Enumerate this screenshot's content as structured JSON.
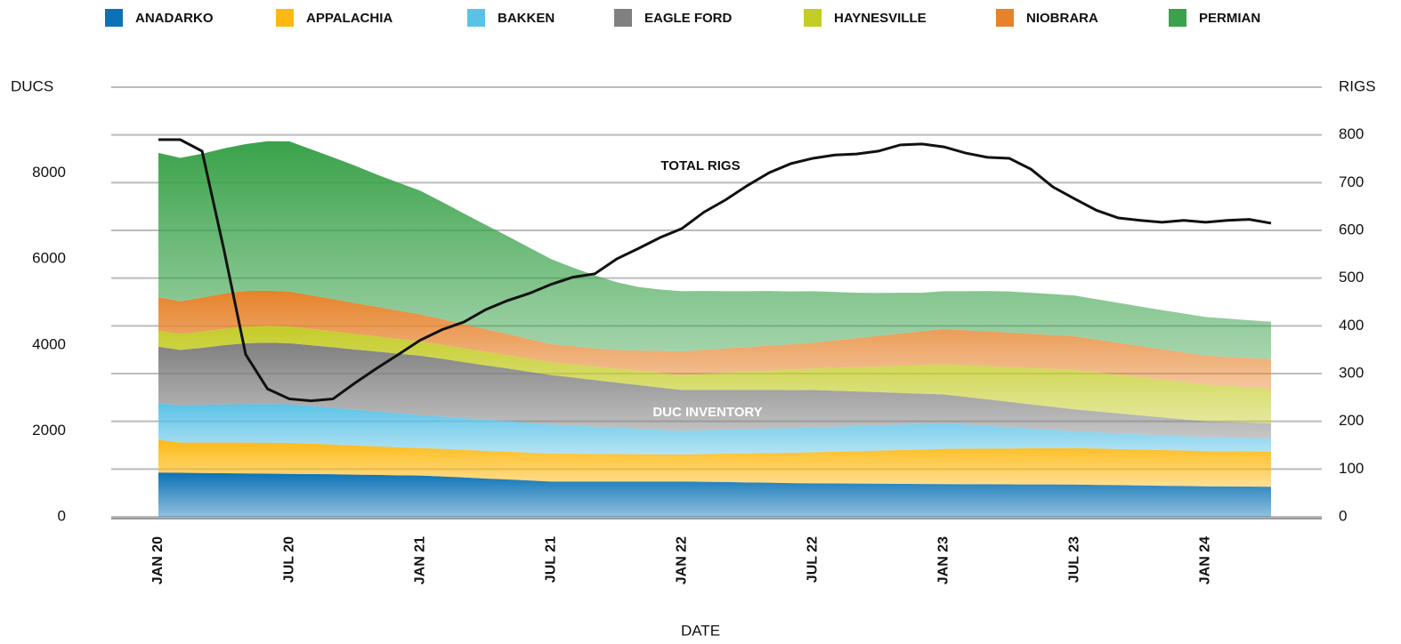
{
  "chart_data": {
    "type": "stacked-area-line",
    "ylabel": "DUCS",
    "y2label": "RIGS",
    "xlabel": "DATE",
    "annotations": [
      "TOTAL RIGS",
      "DUC INVENTORY"
    ],
    "categories": [
      "JAN 20",
      null,
      null,
      null,
      null,
      null,
      "JUL 20",
      null,
      null,
      null,
      null,
      null,
      "JAN 21",
      null,
      null,
      null,
      null,
      null,
      "JUL 21",
      null,
      null,
      null,
      null,
      null,
      "JAN 22",
      null,
      null,
      null,
      null,
      null,
      "JUL 22",
      null,
      null,
      null,
      null,
      null,
      "JAN 23",
      null,
      null,
      null,
      null,
      null,
      "JUL 23",
      null,
      null,
      null,
      null,
      null,
      "JAN 24",
      null,
      null,
      null
    ],
    "ylim": [
      0,
      10000
    ],
    "yticks": [
      0,
      2000,
      4000,
      6000,
      8000
    ],
    "y2lim": [
      0,
      900
    ],
    "y2ticks": [
      0,
      100,
      200,
      300,
      400,
      500,
      600,
      700,
      800
    ],
    "grid": true,
    "legend": "top",
    "series": [
      {
        "name": "ANADARKO",
        "color": "#0b72b5",
        "values": [
          1030,
          1025,
          1020,
          1015,
          1010,
          1005,
          1000,
          995,
          990,
          980,
          975,
          965,
          960,
          940,
          915,
          890,
          870,
          845,
          820,
          820,
          820,
          820,
          820,
          820,
          820,
          815,
          810,
          800,
          795,
          785,
          780,
          777,
          773,
          770,
          767,
          763,
          760,
          758,
          757,
          755,
          753,
          752,
          750,
          743,
          737,
          730,
          723,
          717,
          710,
          707,
          703,
          700
        ]
      },
      {
        "name": "APPALACHIA",
        "color": "#fdb913",
        "values": [
          760,
          700,
          705,
          710,
          715,
          718,
          720,
          707,
          693,
          680,
          667,
          653,
          640,
          642,
          643,
          645,
          647,
          648,
          650,
          647,
          643,
          640,
          637,
          633,
          630,
          645,
          660,
          675,
          690,
          705,
          720,
          737,
          753,
          770,
          787,
          803,
          820,
          825,
          830,
          835,
          840,
          845,
          850,
          845,
          840,
          835,
          830,
          825,
          820,
          820,
          820,
          820
        ]
      },
      {
        "name": "BAKKEN",
        "color": "#5bc2e7",
        "values": [
          850,
          870,
          880,
          890,
          895,
          900,
          900,
          878,
          857,
          835,
          813,
          792,
          770,
          755,
          740,
          725,
          710,
          695,
          680,
          658,
          637,
          615,
          593,
          572,
          550,
          555,
          560,
          565,
          570,
          575,
          580,
          583,
          587,
          590,
          593,
          597,
          600,
          565,
          530,
          495,
          460,
          425,
          390,
          378,
          367,
          355,
          343,
          332,
          320,
          317,
          313,
          310
        ]
      },
      {
        "name": "EAGLE FORD",
        "color": "#808080",
        "values": [
          1320,
          1290,
          1330,
          1380,
          1420,
          1430,
          1420,
          1413,
          1407,
          1400,
          1393,
          1387,
          1380,
          1342,
          1303,
          1265,
          1227,
          1188,
          1150,
          1117,
          1083,
          1050,
          1017,
          983,
          950,
          937,
          923,
          910,
          897,
          883,
          870,
          837,
          803,
          770,
          737,
          703,
          670,
          643,
          617,
          590,
          563,
          537,
          510,
          487,
          463,
          440,
          417,
          393,
          370,
          363,
          357,
          350
        ]
      },
      {
        "name": "HAYNESVILLE",
        "color": "#c4cc27",
        "values": [
          370,
          370,
          375,
          380,
          385,
          390,
          390,
          380,
          370,
          360,
          350,
          340,
          330,
          325,
          320,
          315,
          310,
          305,
          300,
          308,
          317,
          325,
          333,
          342,
          350,
          375,
          400,
          425,
          450,
          475,
          500,
          533,
          567,
          600,
          633,
          667,
          700,
          737,
          773,
          810,
          847,
          883,
          920,
          910,
          900,
          890,
          880,
          870,
          860,
          840,
          820,
          800
        ]
      },
      {
        "name": "NIOBRARA",
        "color": "#e6822a",
        "values": [
          780,
          760,
          790,
          820,
          830,
          820,
          810,
          780,
          750,
          720,
          690,
          660,
          630,
          595,
          560,
          525,
          490,
          455,
          420,
          420,
          420,
          430,
          470,
          510,
          550,
          558,
          567,
          575,
          583,
          592,
          600,
          637,
          673,
          710,
          747,
          783,
          820,
          813,
          807,
          800,
          793,
          787,
          780,
          762,
          743,
          725,
          707,
          688,
          670,
          677,
          683,
          690
        ]
      },
      {
        "name": "PERMIAN",
        "color": "#3aa24a",
        "values": [
          3360,
          3340,
          3350,
          3380,
          3420,
          3480,
          3500,
          3400,
          3300,
          3200,
          3080,
          2980,
          2880,
          2730,
          2580,
          2430,
          2280,
          2130,
          1980,
          1830,
          1700,
          1580,
          1480,
          1430,
          1400,
          1370,
          1330,
          1300,
          1270,
          1230,
          1200,
          1130,
          1060,
          1000,
          950,
          900,
          880,
          910,
          940,
          960,
          960,
          955,
          950,
          940,
          930,
          920,
          910,
          905,
          900,
          890,
          880,
          870
        ]
      }
    ],
    "line": {
      "name": "TOTAL RIGS",
      "color": "#111111",
      "axis": "y2",
      "values": [
        790,
        790,
        766,
        560,
        340,
        268,
        247,
        243,
        247,
        280,
        311,
        340,
        370,
        392,
        408,
        434,
        453,
        468,
        487,
        502,
        509,
        540,
        562,
        585,
        604,
        638,
        664,
        694,
        721,
        740,
        751,
        758,
        760,
        766,
        779,
        781,
        775,
        762,
        753,
        751,
        728,
        691,
        666,
        642,
        626,
        621,
        617,
        621,
        617,
        621,
        623,
        615
      ]
    }
  }
}
